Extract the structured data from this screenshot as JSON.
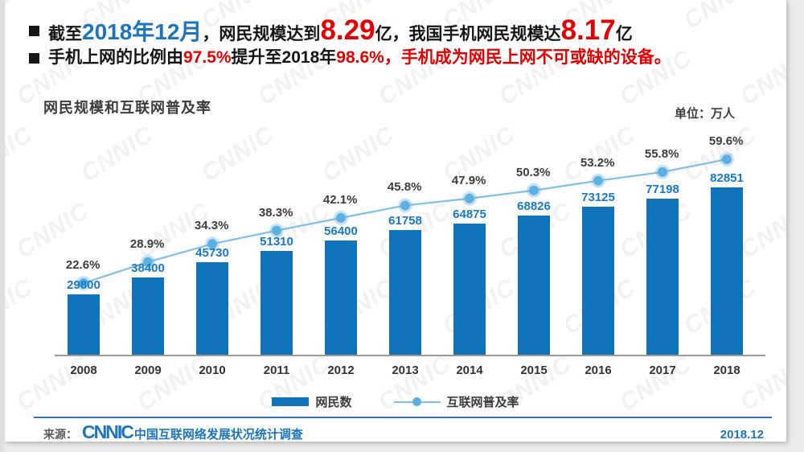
{
  "bullets": [
    {
      "segments": [
        {
          "text": "截至",
          "style": "normal"
        },
        {
          "text": "2018年12月",
          "style": "blue"
        },
        {
          "text": "，网民规模达到",
          "style": "normal"
        },
        {
          "text": "8.29",
          "style": "red-big"
        },
        {
          "text": "亿，我国手机网民规模达",
          "style": "normal"
        },
        {
          "text": "8.17",
          "style": "red-big"
        },
        {
          "text": "亿",
          "style": "normal"
        }
      ]
    },
    {
      "segments": [
        {
          "text": "手机上网的比例由",
          "style": "normal"
        },
        {
          "text": "97.5%",
          "style": "red"
        },
        {
          "text": "提升至2018年",
          "style": "normal"
        },
        {
          "text": "98.6%，",
          "style": "red"
        },
        {
          "text": "手机成为网民上网不可或缺的设备。",
          "style": "red"
        }
      ]
    }
  ],
  "chart_data": {
    "type": "bar",
    "title": "网民规模和互联网普及率",
    "unit_label": "单位：万人",
    "categories": [
      "2008",
      "2009",
      "2010",
      "2011",
      "2012",
      "2013",
      "2014",
      "2015",
      "2016",
      "2017",
      "2018"
    ],
    "series": [
      {
        "name": "网民数",
        "type": "bar",
        "unit": "万人",
        "values": [
          29800,
          38400,
          45730,
          51310,
          56400,
          61758,
          64875,
          68826,
          73125,
          77198,
          82851
        ],
        "color": "#1173b9"
      },
      {
        "name": "互联网普及率",
        "type": "line",
        "unit": "%",
        "values": [
          22.6,
          28.9,
          34.3,
          38.3,
          42.1,
          45.8,
          47.9,
          50.3,
          53.2,
          55.8,
          59.6
        ],
        "color": "#6fb9e7"
      }
    ],
    "legend_position": "bottom",
    "grid": false,
    "ylim": [
      0,
      90000
    ]
  },
  "footer": {
    "source_prefix": "来源：",
    "logo": "CNNIC",
    "source_text": "中国互联网络发展状况统计调查",
    "date": "2018.12"
  },
  "watermark": {
    "text": "CNNIC"
  },
  "colors": {
    "bar": "#1173b9",
    "line": "#7ec0eb",
    "marker": "#5fb0e2",
    "value_label": "#1779c9",
    "percent_label": "#3d3d3d",
    "accent_blue": "#1b75bc",
    "accent_red": "#e60000"
  }
}
